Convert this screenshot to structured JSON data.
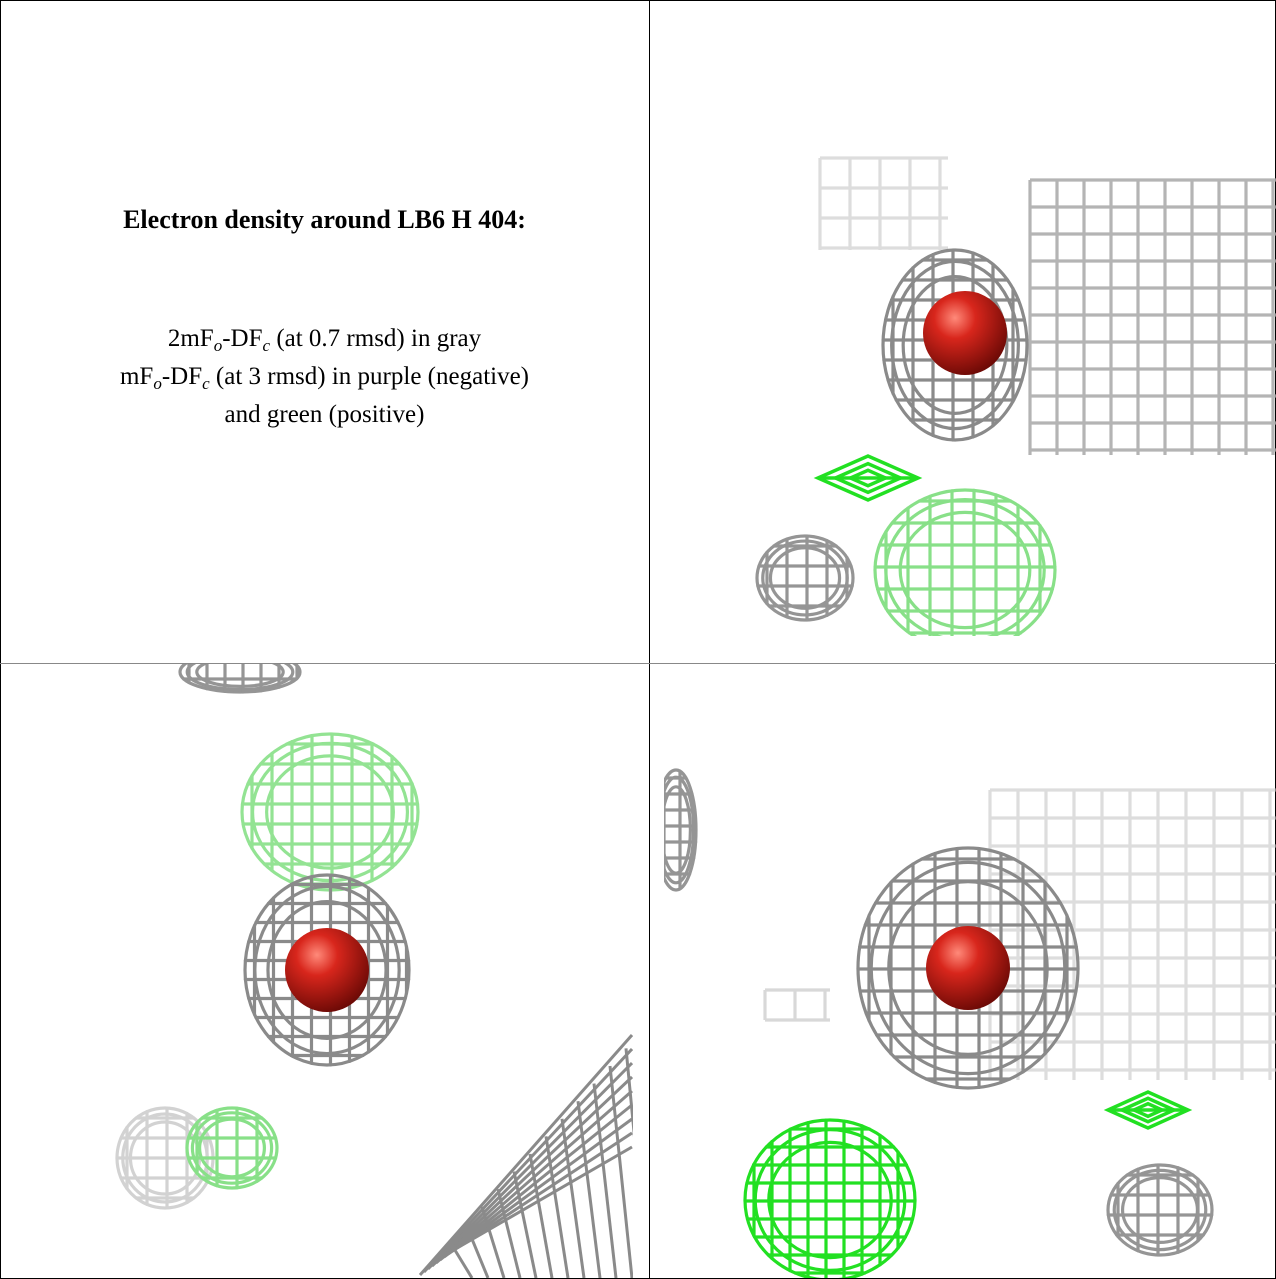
{
  "panel_text": {
    "title": "Electron density around LB6 H 404:",
    "lines": [
      [
        "2mF",
        "o",
        "-DF",
        "c",
        " (at 0.7 rmsd) in gray"
      ],
      [
        "mF",
        "o",
        "-DF",
        "c",
        " (at 3 rmsd) in purple (negative)"
      ],
      [
        "and green (positive)"
      ]
    ]
  }
}
